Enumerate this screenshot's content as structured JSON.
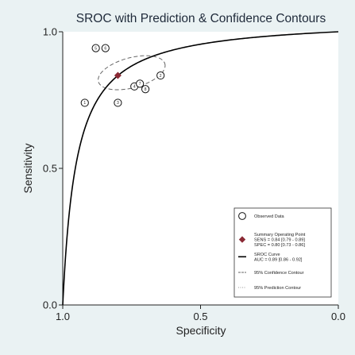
{
  "chart_data": {
    "type": "scatter",
    "title": "SROC with Prediction & Confidence Contours",
    "xlabel": "Specificity",
    "ylabel": "Sensitivity",
    "x_axis_reversed": true,
    "xlim": [
      1.0,
      0.0
    ],
    "ylim": [
      0.0,
      1.0
    ],
    "x_ticks": [
      "1.0",
      "0.5",
      "0.0"
    ],
    "y_ticks": [
      "0.0",
      "0.5",
      "1.0"
    ],
    "grid": false,
    "legend_position": "bottom-right",
    "observed_points": [
      {
        "label": "1",
        "spec": 0.92,
        "sens": 0.74
      },
      {
        "label": "3",
        "spec": 0.8,
        "sens": 0.74
      },
      {
        "label": "5",
        "spec": 0.88,
        "sens": 0.94
      },
      {
        "label": "6",
        "spec": 0.845,
        "sens": 0.94
      },
      {
        "label": "2",
        "spec": 0.645,
        "sens": 0.84
      },
      {
        "label": "4",
        "spec": 0.74,
        "sens": 0.8
      },
      {
        "label": "7",
        "spec": 0.72,
        "sens": 0.81
      },
      {
        "label": "8",
        "spec": 0.7,
        "sens": 0.79
      }
    ],
    "summary_point": {
      "spec": 0.8,
      "sens": 0.84
    },
    "sroc_curve": {
      "auc": 0.89
    },
    "confidence_contour": {
      "center_spec": 0.75,
      "center_sens": 0.85,
      "spec_radius": 0.125,
      "sens_radius": 0.055,
      "tilt_deg": -15
    },
    "legend": [
      {
        "key": "observed",
        "lines": [
          "Observed Data"
        ]
      },
      {
        "key": "summary",
        "lines": [
          "Summary Operating Point",
          "SENS = 0.84 [0.79 - 0.89]",
          "SPEC = 0.80 [0.73 - 0.86]"
        ]
      },
      {
        "key": "sroc",
        "lines": [
          "SROC Curve",
          "AUC = 0.89 [0.86 - 0.92]"
        ]
      },
      {
        "key": "confidence",
        "lines": [
          "95% Confidence Contour"
        ]
      },
      {
        "key": "prediction",
        "lines": [
          "95% Prediction Contour"
        ]
      }
    ],
    "colors": {
      "background": "#eaf2f3",
      "plot_area": "#ffffff",
      "curve": "#000000",
      "summary_marker": "#8b2a35",
      "confidence_contour": "#666666",
      "prediction_contour": "#9a9a9a"
    }
  }
}
